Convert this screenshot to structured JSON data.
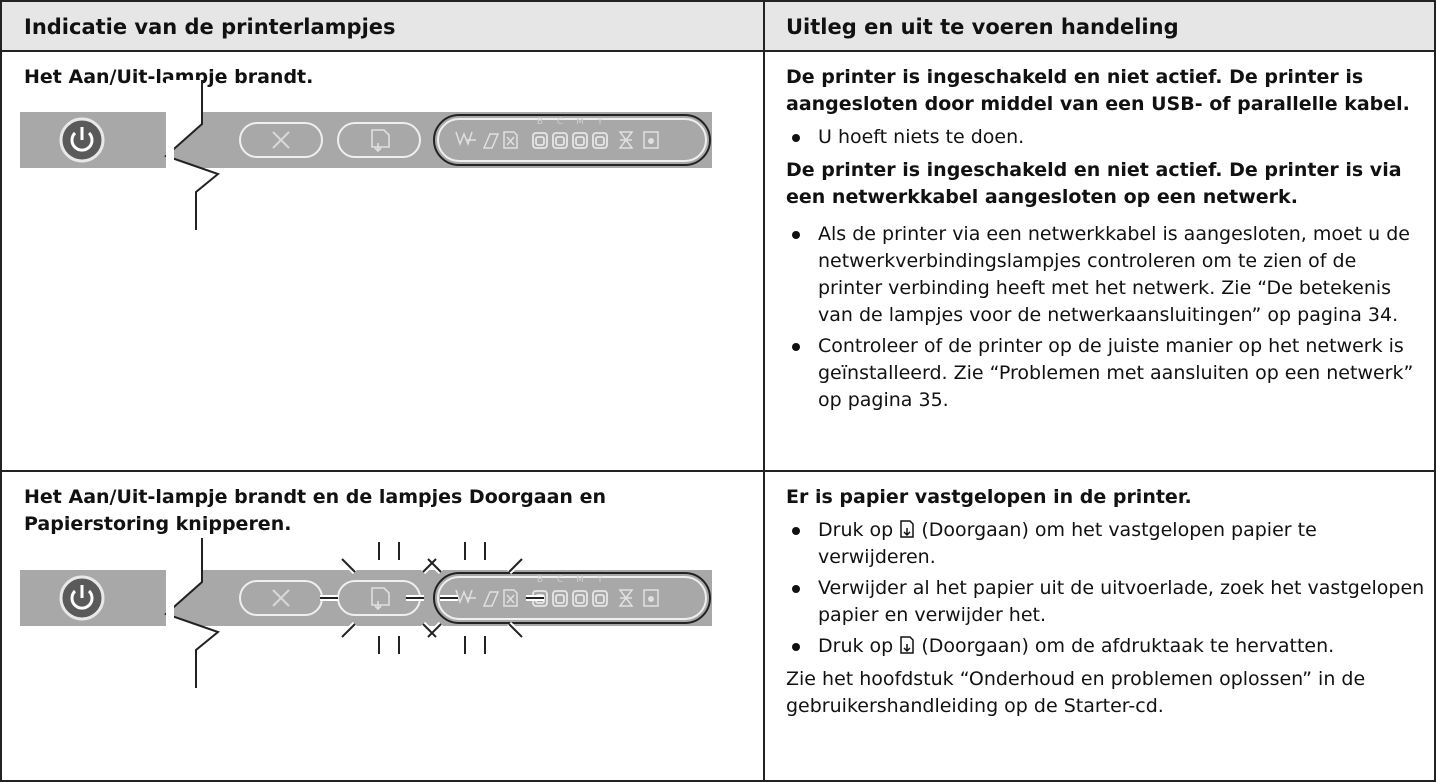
{
  "table": {
    "headers": [
      "Indicatie van de printerlampjes",
      "Uitleg en uit te voeren handeling"
    ],
    "rows": [
      {
        "indication": "Het Aan/Uit-lampje brandt.",
        "blocks": [
          {
            "heading": "De printer is ingeschakeld en niet actief. De printer is aangesloten door middel van een USB- of parallelle kabel.",
            "bullets": [
              "U hoeft niets te doen."
            ]
          },
          {
            "heading": "De printer is ingeschakeld en niet actief. De printer is via een netwerkkabel aangesloten op een netwerk.",
            "bullets": [
              "Als de printer via een netwerkkabel is aangesloten, moet u de netwerkverbindingslampjes controleren om te zien of de printer verbinding heeft met het netwerk. Zie “De betekenis van de lampjes voor de netwerkaansluitingen” op pagina 34.",
              "Controleer of de printer op de juiste manier op het netwerk is geïnstalleerd. Zie “Problemen met aansluiten op een netwerk” op pagina 35."
            ]
          }
        ]
      },
      {
        "indication": "Het Aan/Uit-lampje brandt en de lampjes Doorgaan en Papierstoring knipperen.",
        "blocks": [
          {
            "heading": "Er is papier vastgelopen in de printer.",
            "bullets": [
              {
                "before": "Druk op",
                "after": "(Doorgaan) om het vastgelopen papier te verwijderen."
              },
              "Verwijder al het papier uit de uitvoerlade, zoek het vastgelopen papier en verwijder het.",
              {
                "before": "Druk op",
                "after": "(Doorgaan) om de afdruktaak te hervatten."
              }
            ]
          }
        ],
        "note": "Zie het hoofdstuk “Onderhoud en problemen oplossen” in de gebruikershandleiding op de Starter-cd."
      }
    ]
  },
  "panel": {
    "ink_labels": [
      "B",
      "C",
      "M",
      "Y"
    ]
  }
}
